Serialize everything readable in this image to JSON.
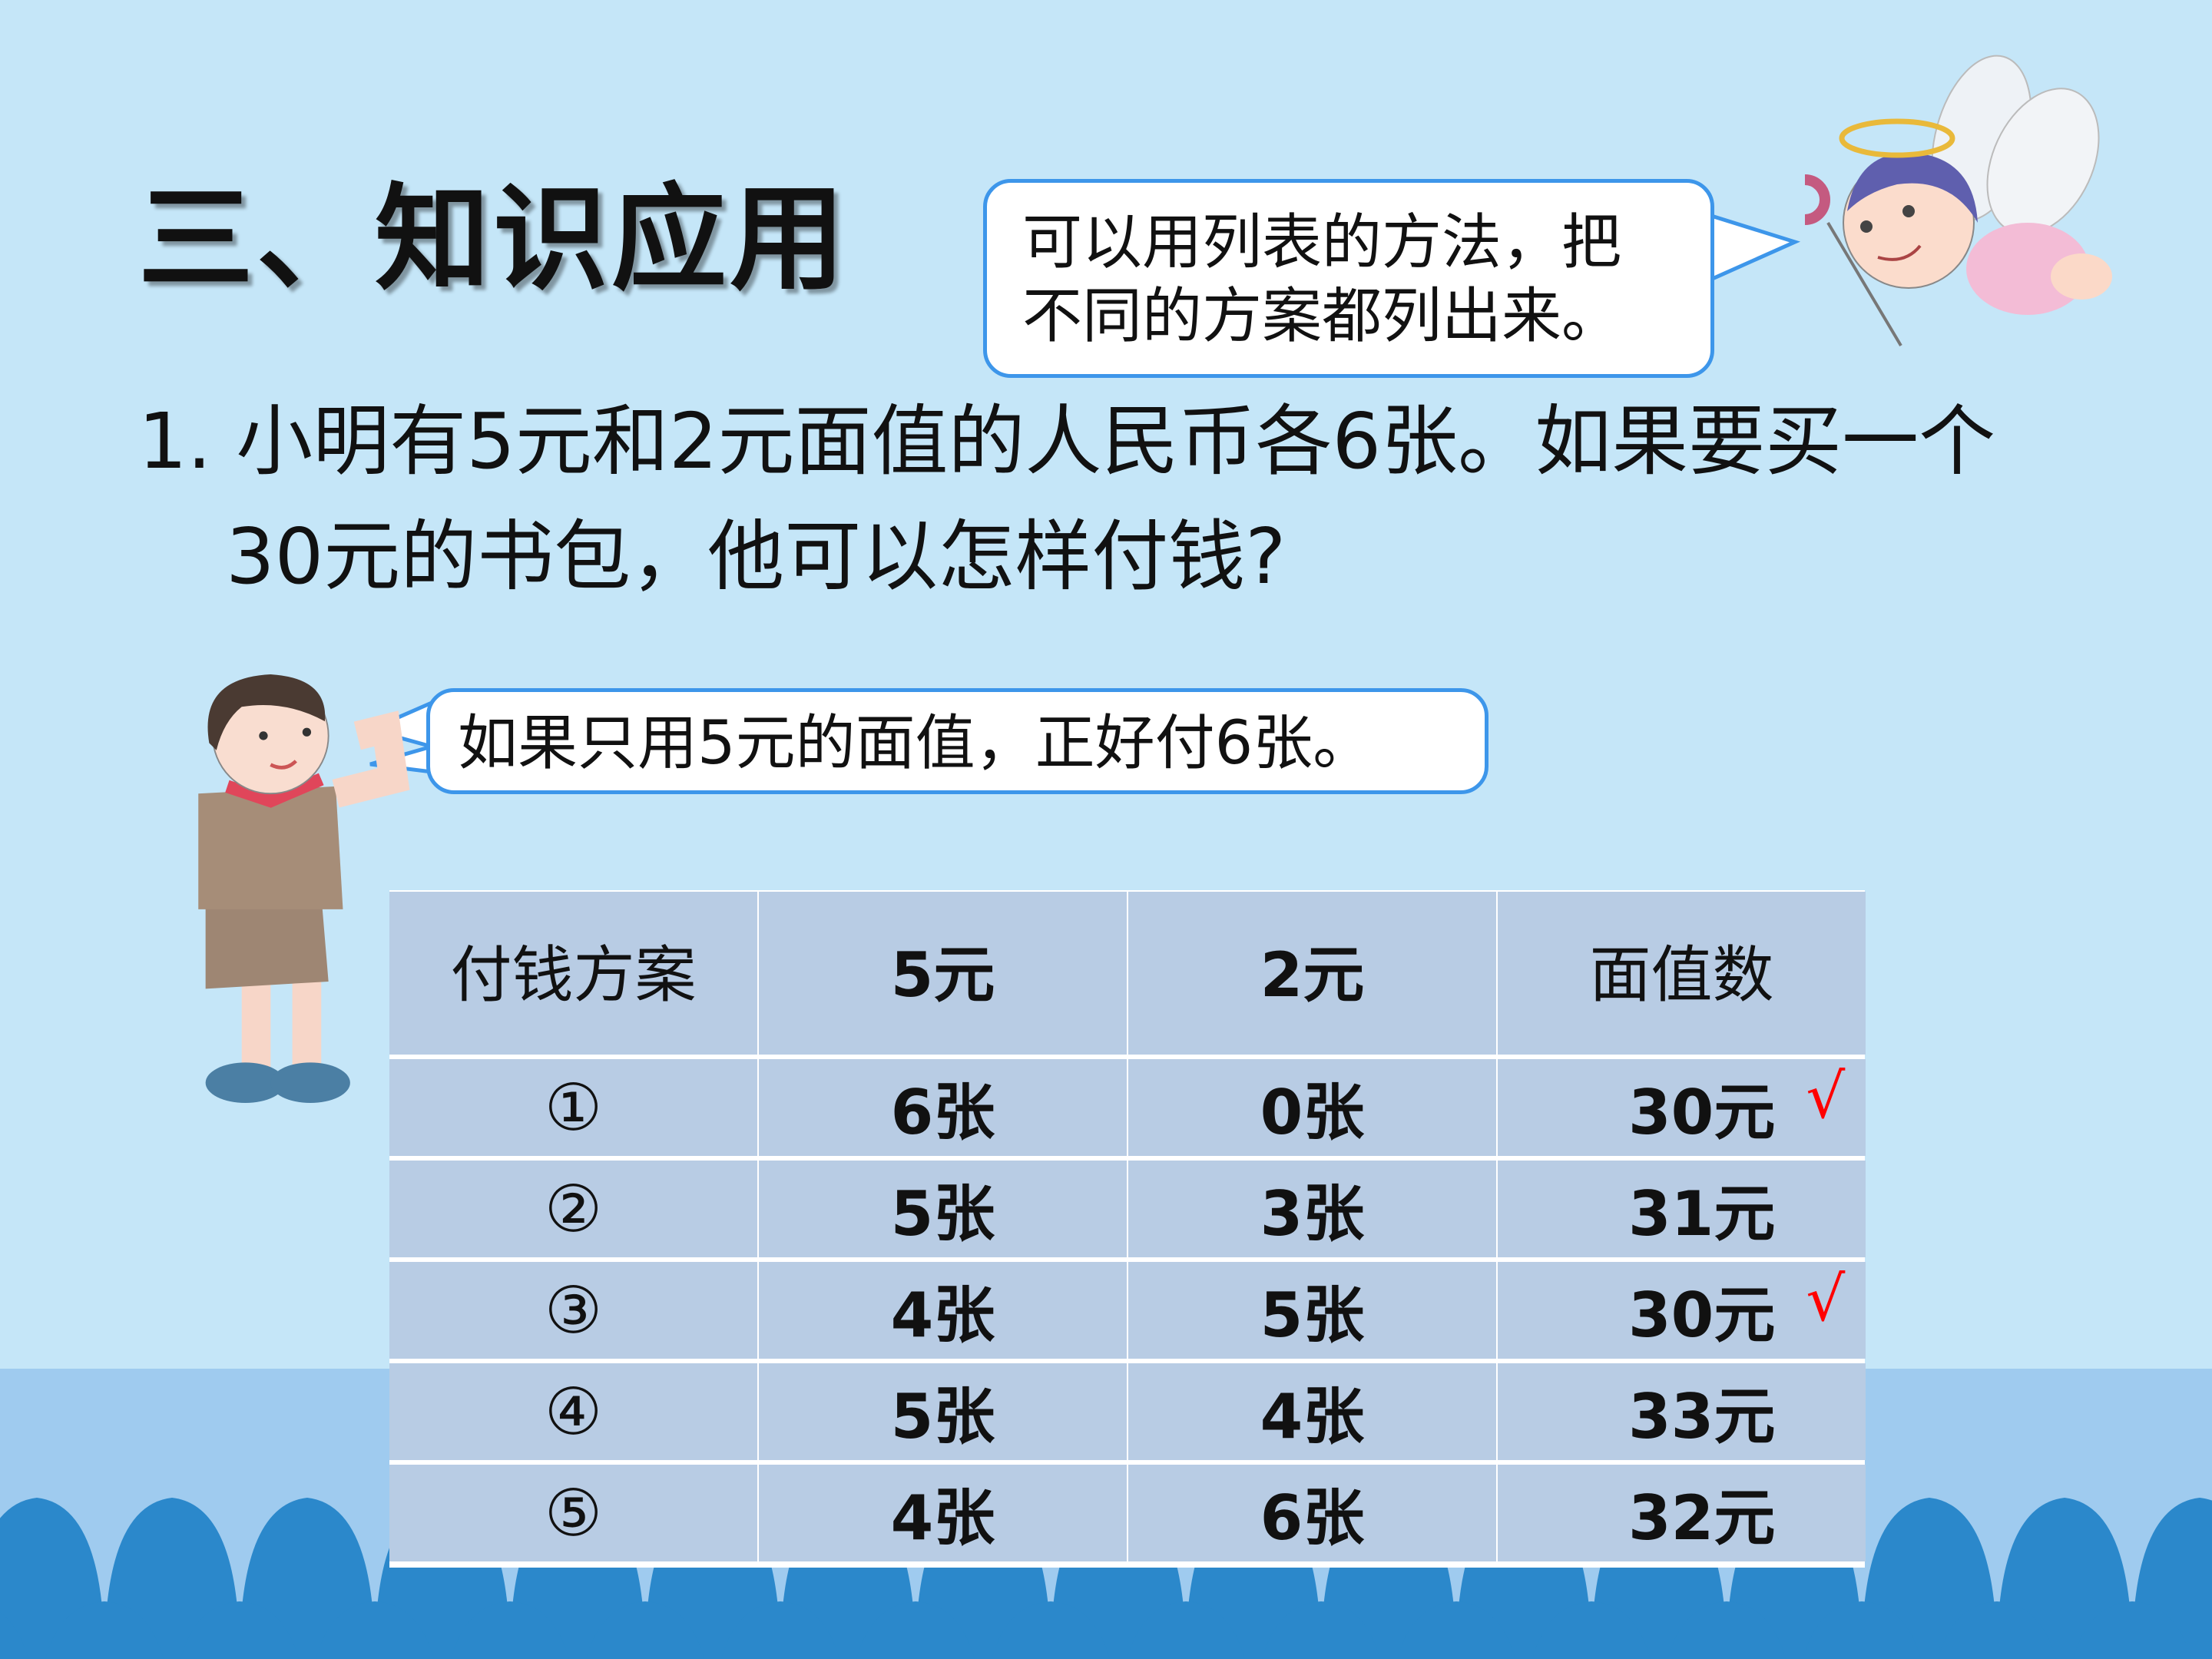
{
  "title": "三、知识应用",
  "fairy_bubble": {
    "lines": [
      "可以用列表的方法，把",
      "不同的方案都列出来。"
    ]
  },
  "question": {
    "line1": "1. 小明有5元和2元面值的人民币各6张。如果要买一个",
    "line2": "30元的书包，他可以怎样付钱?"
  },
  "boy_bubble": {
    "text": "如果只用5元的面值，正好付6张。"
  },
  "table": {
    "headers": [
      "付钱方案",
      "5元",
      "2元",
      "面值数"
    ],
    "rows": [
      {
        "plan": "①",
        "five": "6张",
        "two": "0张",
        "total": "30元",
        "check": "√"
      },
      {
        "plan": "②",
        "five": "5张",
        "two": "3张",
        "total": "31元",
        "check": ""
      },
      {
        "plan": "③",
        "five": "4张",
        "two": "5张",
        "total": "30元",
        "check": "√"
      },
      {
        "plan": "④",
        "five": "5张",
        "two": "4张",
        "total": "33元",
        "check": ""
      },
      {
        "plan": "⑤",
        "five": "4张",
        "two": "6张",
        "total": "32元",
        "check": ""
      }
    ]
  },
  "colors": {
    "background": "#c5e6f8",
    "bubble_border": "#3d96ea",
    "table_cell": "#b8cce4",
    "wave": "#2b88cb",
    "check": "#ff0000"
  },
  "icons": {
    "fairy": "angel-illustration",
    "boy": "boy-illustration"
  }
}
